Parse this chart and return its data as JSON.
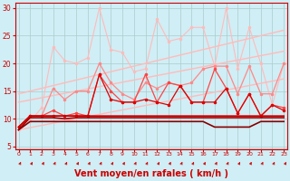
{
  "bg_color": "#d0eef5",
  "grid_color": "#aacccc",
  "xlabel": "Vent moyen/en rafales ( km/h )",
  "xlabel_color": "#cc0000",
  "xlabel_fontsize": 7,
  "tick_color": "#cc0000",
  "yticks": [
    5,
    10,
    15,
    20,
    25,
    30
  ],
  "xticks": [
    0,
    1,
    2,
    3,
    4,
    5,
    6,
    7,
    8,
    9,
    10,
    11,
    12,
    13,
    14,
    15,
    16,
    17,
    18,
    19,
    20,
    21,
    22,
    23
  ],
  "xlim": [
    -0.3,
    23.3
  ],
  "ylim": [
    4.5,
    31
  ],
  "lines": [
    {
      "x": [
        0,
        1,
        2,
        3,
        4,
        5,
        6,
        7,
        8,
        9,
        10,
        11,
        12,
        13,
        14,
        15,
        16,
        17,
        18,
        19,
        20,
        21,
        22,
        23
      ],
      "y": [
        14.5,
        15.0,
        15.5,
        16.0,
        16.5,
        17.0,
        17.5,
        18.0,
        18.5,
        19.0,
        19.5,
        20.0,
        20.5,
        21.0,
        21.5,
        22.0,
        22.5,
        23.0,
        23.5,
        24.0,
        24.5,
        25.0,
        25.5,
        26.0
      ],
      "color": "#ffbbbb",
      "lw": 1.0,
      "marker": null
    },
    {
      "x": [
        0,
        1,
        2,
        3,
        4,
        5,
        6,
        7,
        8,
        9,
        10,
        11,
        12,
        13,
        14,
        15,
        16,
        17,
        18,
        19,
        20,
        21,
        22,
        23
      ],
      "y": [
        13.0,
        13.4,
        13.8,
        14.2,
        14.6,
        15.0,
        15.4,
        15.8,
        16.2,
        16.6,
        17.0,
        17.4,
        17.8,
        18.2,
        18.6,
        19.0,
        19.4,
        19.8,
        20.2,
        20.6,
        21.0,
        21.4,
        21.8,
        22.2
      ],
      "color": "#ffbbbb",
      "lw": 1.0,
      "marker": null
    },
    {
      "x": [
        0,
        1,
        2,
        3,
        4,
        5,
        6,
        7,
        8,
        9,
        10,
        11,
        12,
        13,
        14,
        15,
        16,
        17,
        18,
        19,
        20,
        21,
        22,
        23
      ],
      "y": [
        8.0,
        8.4,
        8.8,
        9.2,
        9.6,
        10.0,
        10.4,
        10.8,
        11.2,
        11.6,
        12.0,
        12.4,
        12.8,
        13.2,
        13.6,
        14.0,
        14.4,
        14.8,
        15.2,
        15.6,
        16.0,
        16.4,
        16.8,
        17.2
      ],
      "color": "#ffbbbb",
      "lw": 1.0,
      "marker": null
    },
    {
      "x": [
        0,
        1,
        2,
        3,
        4,
        5,
        6,
        7,
        8,
        9,
        10,
        11,
        12,
        13,
        14,
        15,
        16,
        17,
        18,
        19,
        20,
        21,
        22,
        23
      ],
      "y": [
        8.0,
        9.5,
        12.0,
        23.0,
        20.5,
        20.0,
        21.0,
        30.0,
        22.5,
        22.0,
        18.5,
        19.0,
        28.0,
        24.0,
        24.5,
        26.5,
        26.5,
        19.5,
        30.0,
        19.0,
        26.5,
        20.0,
        12.5,
        20.0
      ],
      "color": "#ffbbbb",
      "lw": 0.8,
      "marker": "o",
      "ms": 1.5
    },
    {
      "x": [
        0,
        1,
        2,
        3,
        4,
        5,
        6,
        7,
        8,
        9,
        10,
        11,
        12,
        13,
        14,
        15,
        16,
        17,
        18,
        19,
        20,
        21,
        22,
        23
      ],
      "y": [
        8.5,
        10.5,
        10.5,
        15.5,
        13.5,
        15.0,
        15.0,
        20.0,
        16.5,
        14.5,
        13.5,
        16.5,
        15.5,
        16.5,
        16.0,
        16.5,
        19.0,
        19.5,
        19.5,
        14.5,
        19.5,
        14.5,
        14.5,
        20.0
      ],
      "color": "#ff8888",
      "lw": 0.9,
      "marker": "o",
      "ms": 1.5
    },
    {
      "x": [
        0,
        1,
        2,
        3,
        4,
        5,
        6,
        7,
        8,
        9,
        10,
        11,
        12,
        13,
        14,
        15,
        16,
        17,
        18,
        19,
        20,
        21,
        22,
        23
      ],
      "y": [
        8.5,
        10.5,
        10.5,
        11.5,
        10.5,
        11.0,
        10.5,
        18.0,
        15.0,
        13.0,
        13.0,
        18.0,
        13.0,
        16.5,
        16.0,
        13.0,
        13.0,
        19.0,
        15.5,
        11.0,
        14.5,
        10.5,
        12.5,
        12.0
      ],
      "color": "#ff4444",
      "lw": 0.9,
      "marker": "o",
      "ms": 1.5
    },
    {
      "x": [
        0,
        1,
        2,
        3,
        4,
        5,
        6,
        7,
        8,
        9,
        10,
        11,
        12,
        13,
        14,
        15,
        16,
        17,
        18,
        19,
        20,
        21,
        22,
        23
      ],
      "y": [
        8.5,
        10.5,
        10.5,
        10.5,
        10.5,
        10.5,
        10.5,
        18.0,
        13.5,
        13.0,
        13.0,
        13.5,
        13.0,
        12.5,
        16.0,
        13.0,
        13.0,
        13.0,
        15.5,
        11.0,
        14.5,
        10.5,
        12.5,
        11.5
      ],
      "color": "#dd0000",
      "lw": 0.9,
      "marker": "o",
      "ms": 1.5
    },
    {
      "x": [
        0,
        1,
        2,
        3,
        4,
        5,
        6,
        7,
        8,
        9,
        10,
        11,
        12,
        13,
        14,
        15,
        16,
        17,
        18,
        19,
        20,
        21,
        22,
        23
      ],
      "y": [
        8.5,
        10.5,
        10.5,
        10.5,
        10.5,
        10.5,
        10.5,
        10.5,
        10.5,
        10.5,
        10.5,
        10.5,
        10.5,
        10.5,
        10.5,
        10.5,
        10.5,
        10.5,
        10.5,
        10.5,
        10.5,
        10.5,
        10.5,
        10.5
      ],
      "color": "#cc0000",
      "lw": 1.2,
      "marker": null
    },
    {
      "x": [
        0,
        1,
        2,
        3,
        4,
        5,
        6,
        7,
        8,
        9,
        10,
        11,
        12,
        13,
        14,
        15,
        16,
        17,
        18,
        19,
        20,
        21,
        22,
        23
      ],
      "y": [
        8.0,
        10.2,
        10.2,
        10.2,
        10.0,
        10.2,
        10.2,
        10.2,
        10.2,
        10.2,
        10.2,
        10.2,
        10.2,
        10.2,
        10.2,
        10.2,
        10.2,
        10.2,
        10.2,
        10.2,
        10.2,
        10.2,
        10.2,
        10.2
      ],
      "color": "#aa0000",
      "lw": 1.2,
      "marker": null
    },
    {
      "x": [
        0,
        1,
        2,
        3,
        4,
        5,
        6,
        7,
        8,
        9,
        10,
        11,
        12,
        13,
        14,
        15,
        16,
        17,
        18,
        19,
        20,
        21,
        22,
        23
      ],
      "y": [
        8.0,
        9.5,
        9.5,
        9.5,
        9.5,
        9.5,
        9.5,
        9.5,
        9.5,
        9.5,
        9.5,
        9.5,
        9.5,
        9.5,
        9.5,
        9.5,
        9.5,
        8.5,
        8.5,
        8.5,
        8.5,
        9.5,
        9.5,
        9.5
      ],
      "color": "#880000",
      "lw": 1.2,
      "marker": null
    }
  ],
  "arrow_color": "#cc0000"
}
